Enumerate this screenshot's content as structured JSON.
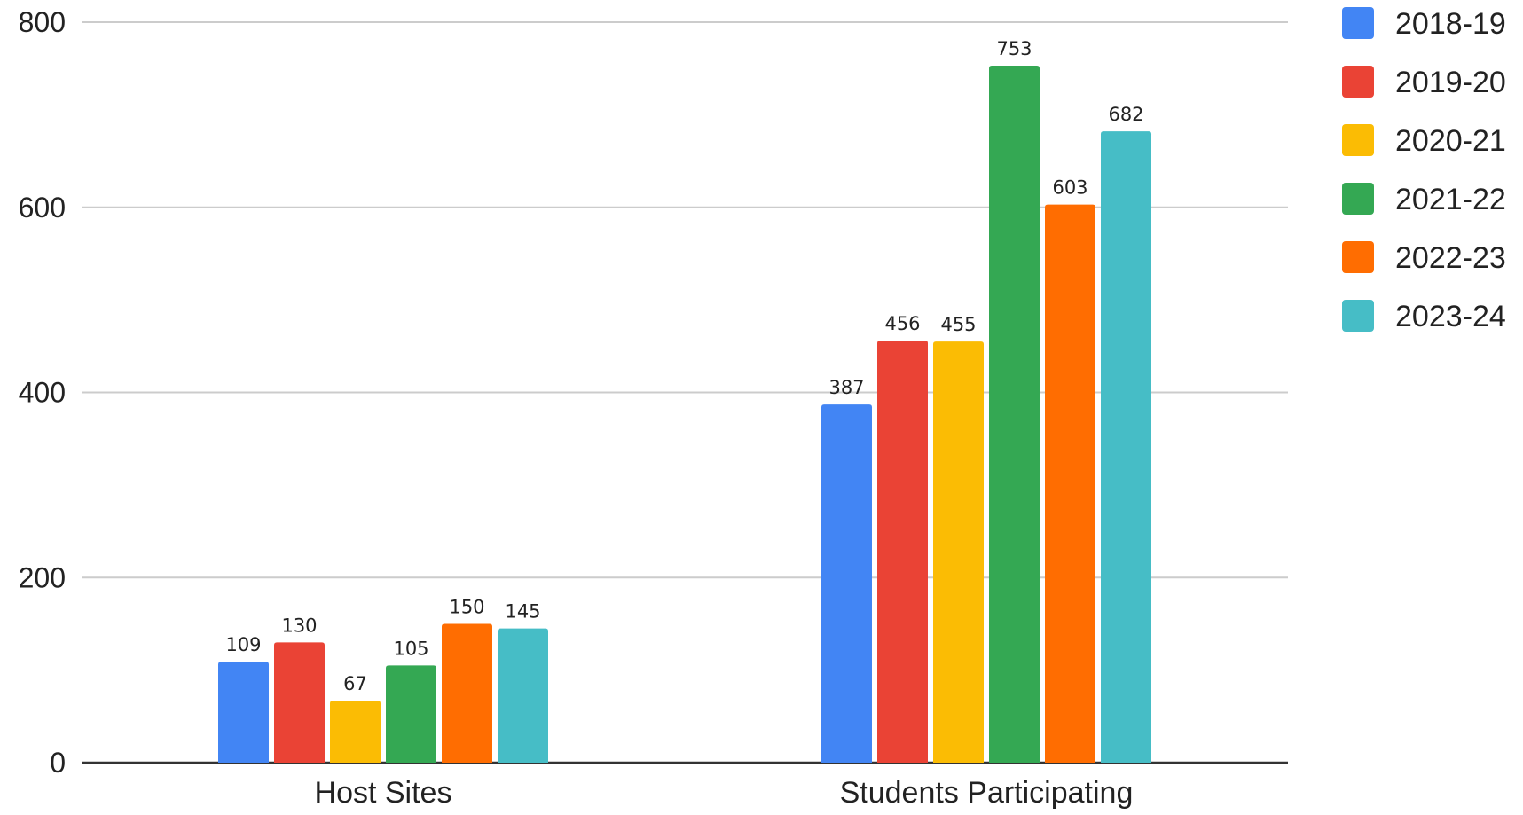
{
  "chart_data": {
    "type": "bar",
    "title": "",
    "xlabel": "",
    "ylabel": "",
    "categories": [
      "Host Sites",
      "Students Participating"
    ],
    "series": [
      {
        "name": "2018-19",
        "color": "#4285F4",
        "values": [
          109,
          387
        ]
      },
      {
        "name": "2019-20",
        "color": "#EA4335",
        "values": [
          130,
          456
        ]
      },
      {
        "name": "2020-21",
        "color": "#FBBC04",
        "values": [
          67,
          455
        ]
      },
      {
        "name": "2021-22",
        "color": "#34A853",
        "values": [
          105,
          753
        ]
      },
      {
        "name": "2022-23",
        "color": "#FF6D01",
        "values": [
          150,
          603
        ]
      },
      {
        "name": "2023-24",
        "color": "#46BDC6",
        "values": [
          145,
          682
        ]
      }
    ],
    "ylim": [
      0,
      800
    ],
    "yticks": [
      "0",
      "200",
      "400",
      "600",
      "800"
    ],
    "grid": true,
    "legend_position": "right",
    "data_labels": true
  }
}
